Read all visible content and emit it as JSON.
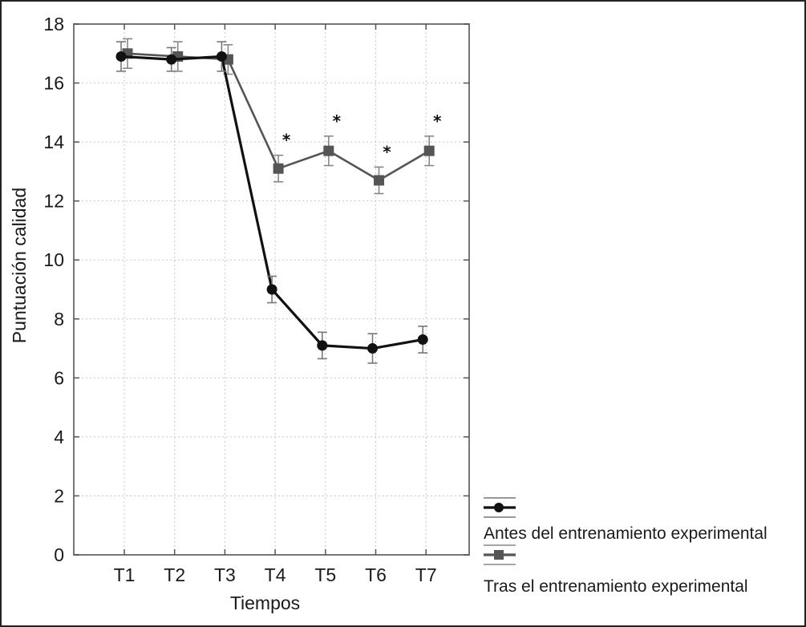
{
  "chart_data": {
    "type": "line",
    "title": "",
    "xlabel": "Tiempos",
    "ylabel": "Puntuación calidad",
    "categories": [
      "T1",
      "T2",
      "T3",
      "T4",
      "T5",
      "T6",
      "T7"
    ],
    "ylim": [
      0,
      18
    ],
    "yticks": [
      0,
      2,
      4,
      6,
      8,
      10,
      12,
      14,
      16,
      18
    ],
    "grid": true,
    "legend_position": "bottom-right",
    "series": [
      {
        "name": "Antes del entrenamiento experimental",
        "color": "#111111",
        "marker": "circle",
        "values": [
          16.9,
          16.8,
          16.9,
          9.0,
          7.1,
          7.0,
          7.3
        ],
        "error": [
          0.5,
          0.4,
          0.5,
          0.45,
          0.45,
          0.5,
          0.45
        ]
      },
      {
        "name": "Tras el entrenamiento experimental",
        "color": "#555555",
        "marker": "square",
        "values": [
          17.0,
          16.9,
          16.8,
          13.1,
          13.7,
          12.7,
          13.7
        ],
        "error": [
          0.5,
          0.5,
          0.5,
          0.45,
          0.5,
          0.45,
          0.5
        ]
      }
    ],
    "annotations": [
      {
        "category": "T4",
        "text": "*"
      },
      {
        "category": "T5",
        "text": "*"
      },
      {
        "category": "T6",
        "text": "*"
      },
      {
        "category": "T7",
        "text": "*"
      }
    ]
  }
}
